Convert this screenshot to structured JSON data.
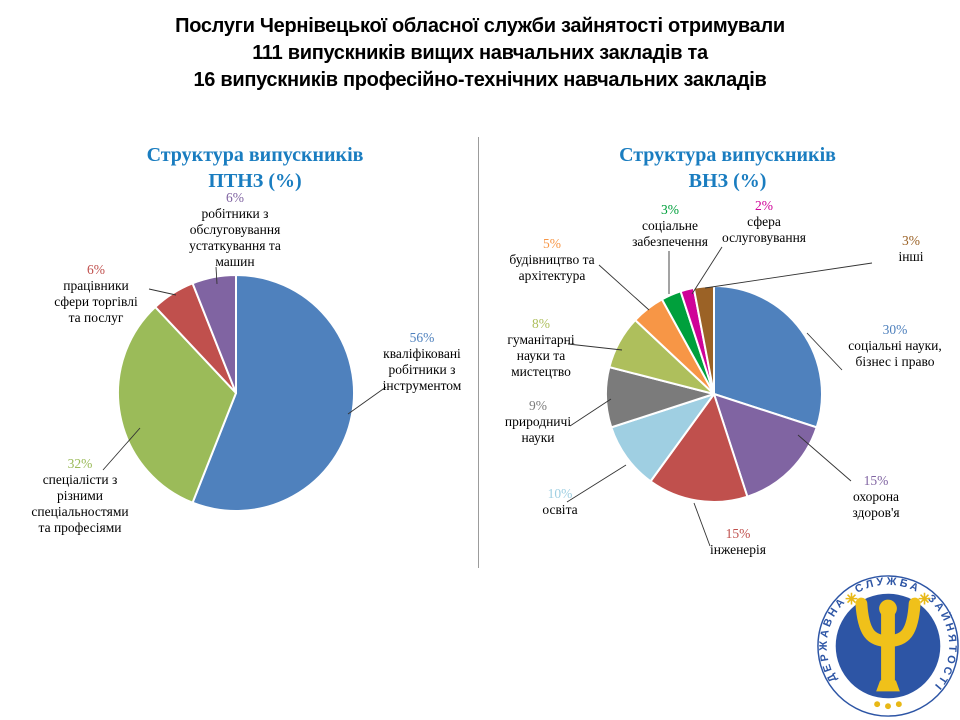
{
  "header": {
    "line1": "Послуги Чернівецької обласної служби зайнятості отримували",
    "line2": "111 випускників вищих навчальних закладів та",
    "line3": "16 випускників професійно-технічних навчальних закладів"
  },
  "chart_data": [
    {
      "type": "pie",
      "title_line1": "Структура випускників",
      "title_line2": "ПТНЗ (%)",
      "legend_position": "labels-around-pie",
      "slices": [
        {
          "name": "кваліфіковані робітники з інструментом",
          "value": 56,
          "pct_label": "56%",
          "color": "#4f81bd"
        },
        {
          "name": "спеціалісти з різними спеціальностями та професіями",
          "value": 32,
          "pct_label": "32%",
          "color": "#9bbb59"
        },
        {
          "name": "працівники сфери торгівлі та послуг",
          "value": 6,
          "pct_label": "6%",
          "color": "#c0504d"
        },
        {
          "name": "робітники з обслуговування устаткування та машин",
          "value": 6,
          "pct_label": "6%",
          "color": "#8064a2"
        }
      ]
    },
    {
      "type": "pie",
      "title_line1": "Структура випускників",
      "title_line2": "ВНЗ (%)",
      "legend_position": "labels-around-pie",
      "slices": [
        {
          "name": "соціальні науки, бізнес і право",
          "value": 30,
          "pct_label": "30%",
          "color": "#4f81bd"
        },
        {
          "name": "охорона здоров'я",
          "value": 15,
          "pct_label": "15%",
          "color": "#8064a2"
        },
        {
          "name": "інженерія",
          "value": 15,
          "pct_label": "15%",
          "color": "#c0504d"
        },
        {
          "name": "освіта",
          "value": 10,
          "pct_label": "10%",
          "color": "#9fcfe2"
        },
        {
          "name": "природничі науки",
          "value": 9,
          "pct_label": "9%",
          "color": "#7b7b7b"
        },
        {
          "name": "гуманітарні науки та мистецтво",
          "value": 8,
          "pct_label": "8%",
          "color": "#aebf5c"
        },
        {
          "name": "будівництво та архітектура",
          "value": 5,
          "pct_label": "5%",
          "color": "#f79646"
        },
        {
          "name": "соціальне забезпечення",
          "value": 3,
          "pct_label": "3%",
          "color": "#00a03c"
        },
        {
          "name": "сфера ослуговування",
          "value": 2,
          "pct_label": "2%",
          "color": "#cf0398"
        },
        {
          "name": "інші",
          "value": 3,
          "pct_label": "3%",
          "color": "#9b6226"
        }
      ]
    }
  ],
  "logo": {
    "word_left": "ДЕРЖАВНА",
    "word_top": "СЛУЖБА",
    "word_right": "ЗАЙНЯТОСТІ",
    "blue": "#2d55a5",
    "yellow": "#f0c11a"
  }
}
